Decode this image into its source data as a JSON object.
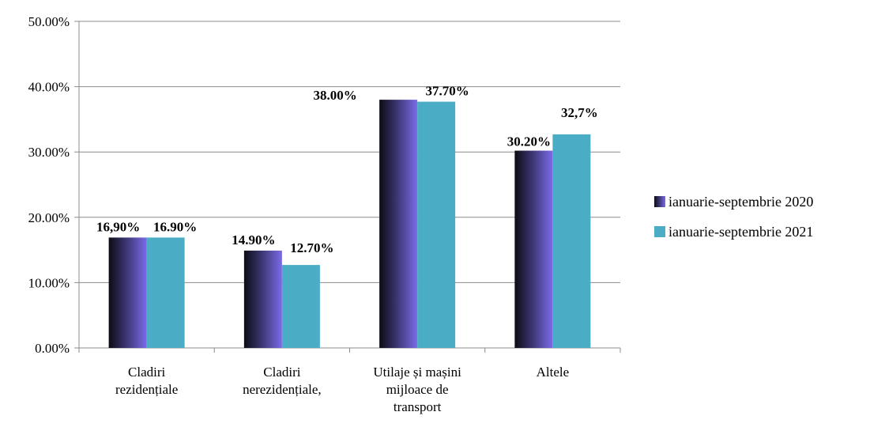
{
  "chart_data": {
    "type": "bar",
    "title": "",
    "xlabel": "",
    "ylabel": "",
    "ylim": [
      0,
      50
    ],
    "yticks": [
      "0.00%",
      "10.00%",
      "20.00%",
      "30.00%",
      "40.00%",
      "50.00%"
    ],
    "yticks_values": [
      0,
      10,
      20,
      30,
      40,
      50
    ],
    "grid": true,
    "legend_position": "right",
    "categories": [
      [
        "Cladiri",
        "rezidențiale"
      ],
      [
        "Cladiri",
        "nerezidențiale,"
      ],
      [
        "Utilaje și mașini",
        "mijloace de",
        "transport"
      ],
      [
        "Altele"
      ]
    ],
    "series": [
      {
        "name": "ianuarie-septembrie 2020",
        "color": "#6f5fd8",
        "values": [
          16.9,
          14.9,
          38.0,
          30.2
        ],
        "labels": [
          "16,90%",
          "14.90%",
          "38.00%",
          "30.20%"
        ]
      },
      {
        "name": "ianuarie-septembrie 2021",
        "color": "#4bacc6",
        "values": [
          16.9,
          12.7,
          37.7,
          32.7
        ],
        "labels": [
          "16.90%",
          "12.70%",
          "37.70%",
          "32,7%"
        ]
      }
    ]
  }
}
